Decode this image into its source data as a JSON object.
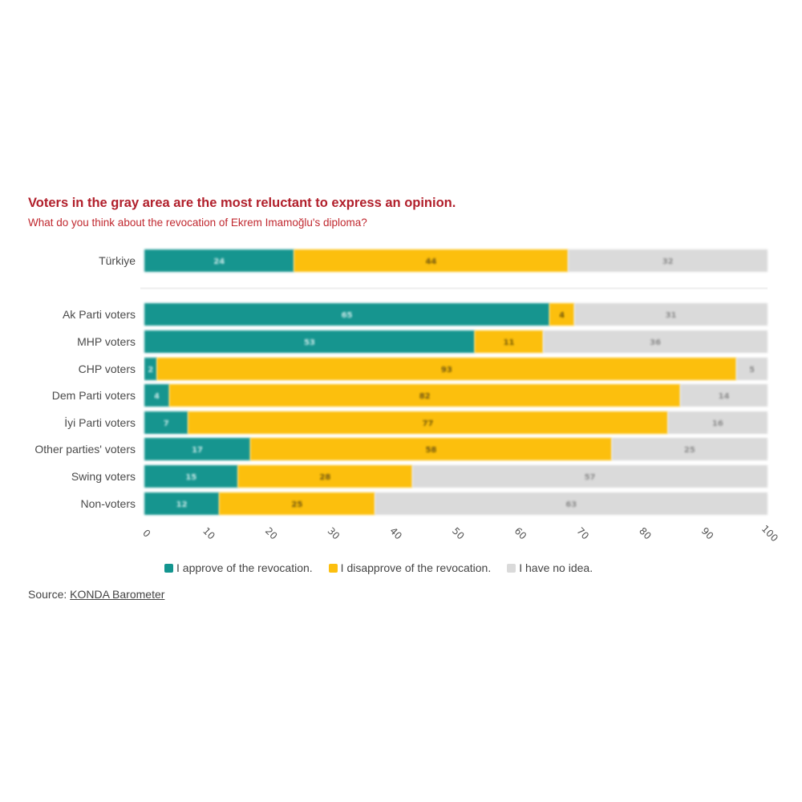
{
  "title": "Voters in the gray area are the most reluctant to express an opinion.",
  "subtitle": "What do you think about the revocation of Ekrem Imamoğlu's diploma?",
  "source": {
    "prefix": "Source: ",
    "link_text": "KONDA Barometer"
  },
  "colors": {
    "approve": "#13958f",
    "disapprove": "#fcbf0f",
    "no_idea": "#dadada",
    "title": "#b11f2b"
  },
  "chart_data": {
    "type": "bar",
    "orientation": "horizontal",
    "stacked": true,
    "categories": [
      "Türkiye",
      "Ak Parti voters",
      "MHP voters",
      "CHP voters",
      "Dem Parti voters",
      "İyi Parti voters",
      "Other parties' voters",
      "Swing voters",
      "Non-voters"
    ],
    "series": [
      {
        "name": "I approve of the revocation.",
        "color_key": "approve",
        "values": [
          24,
          65,
          53,
          2,
          4,
          7,
          17,
          15,
          12
        ]
      },
      {
        "name": "I disapprove of the revocation.",
        "color_key": "disapprove",
        "values": [
          44,
          4,
          11,
          93,
          82,
          77,
          58,
          28,
          25
        ]
      },
      {
        "name": "I have no idea.",
        "color_key": "no_idea",
        "values": [
          32,
          31,
          36,
          5,
          14,
          16,
          25,
          57,
          63
        ]
      }
    ],
    "x_ticks": [
      "0",
      "10",
      "20",
      "30",
      "40",
      "50",
      "60",
      "70",
      "80",
      "90",
      "100"
    ],
    "xlim": [
      0,
      100
    ],
    "xlabel": "",
    "ylabel": "",
    "grid": false,
    "legend_position": "bottom",
    "separator_after_first_category": true
  }
}
